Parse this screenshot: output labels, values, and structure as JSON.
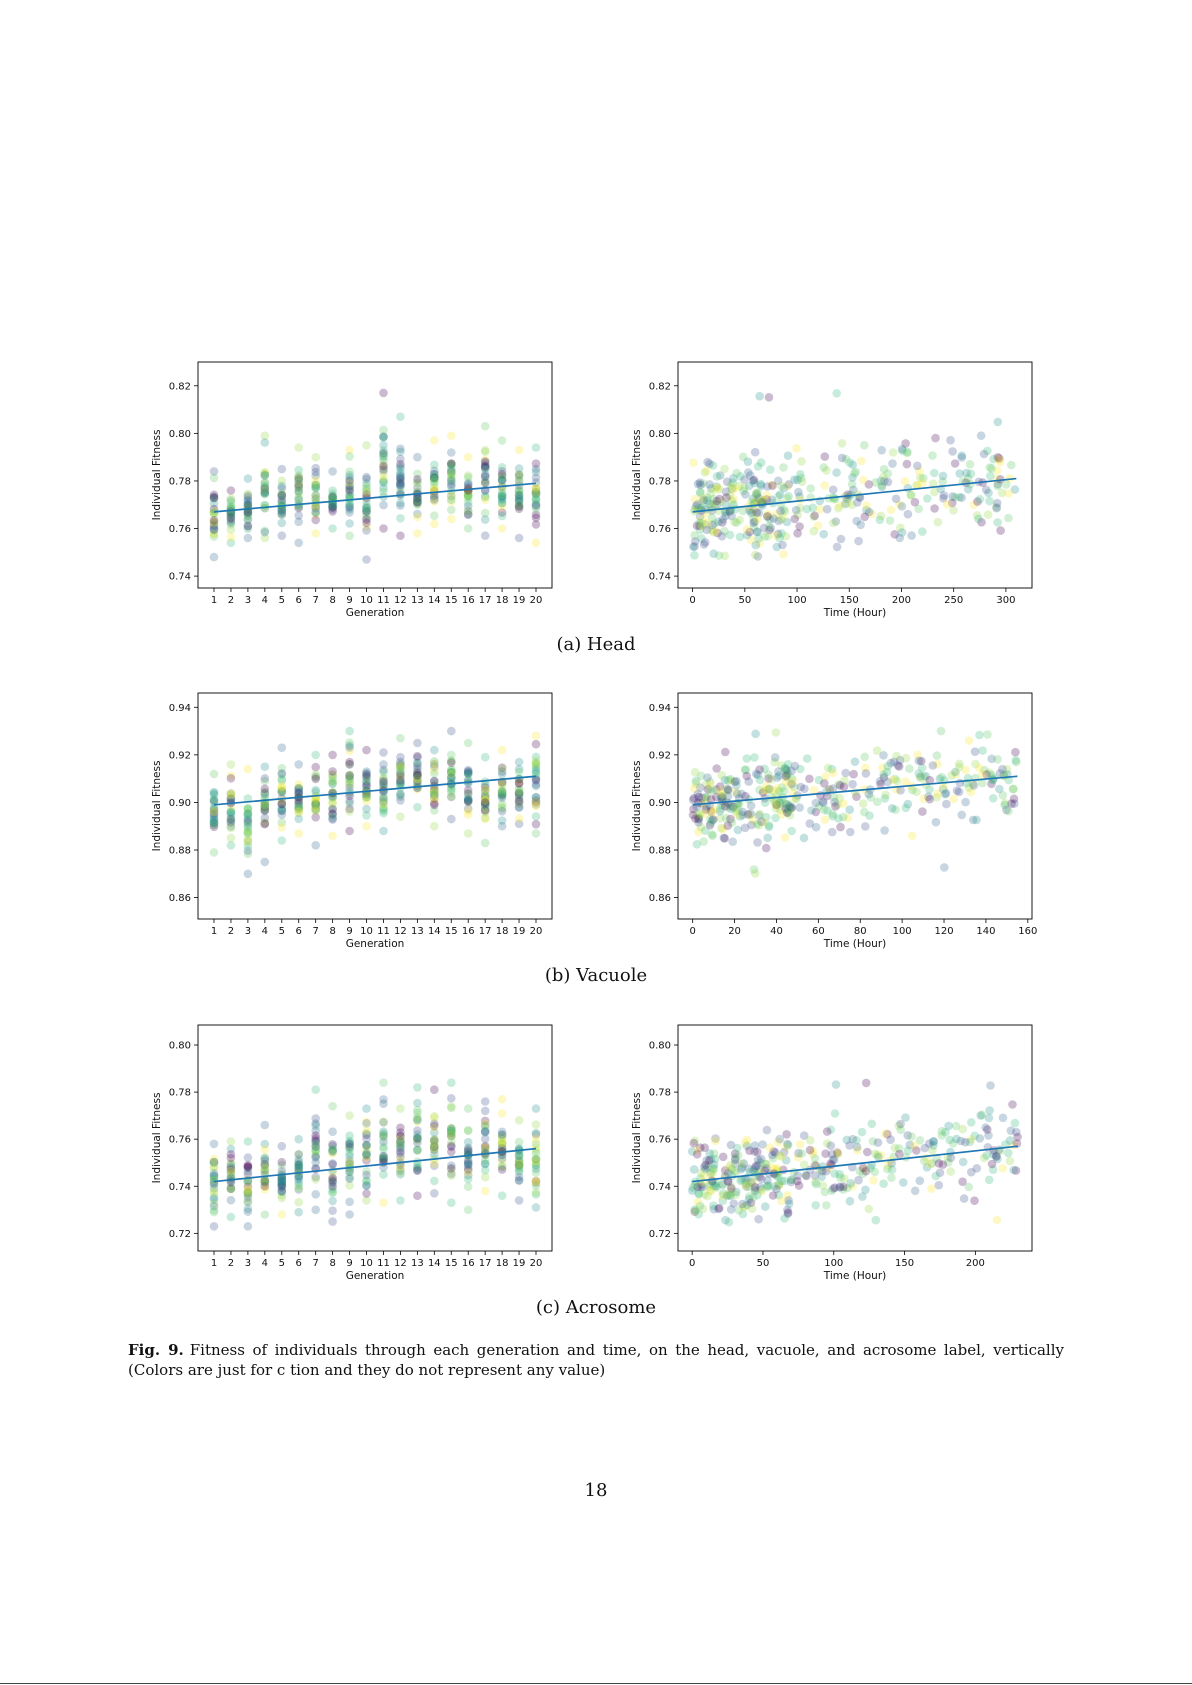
{
  "figure": {
    "caption_label": "Fig. 9.",
    "caption_text": "Fitness of individuals through each generation and time, on the head, vacuole, and acrosome label, vertically (Colors are just for c          tion and they do not represent any value)",
    "subcaptions": [
      "(a) Head",
      "(b) Vacuole",
      "(c) Acrosome"
    ],
    "page_number": "18"
  },
  "palette": [
    "#440154",
    "#3b528b",
    "#21918c",
    "#5ec962",
    "#fde725",
    "#31688e",
    "#35b779",
    "#90d743"
  ],
  "trend_color": "#1f77b4",
  "chart_data": [
    {
      "id": "head-generation",
      "type": "scatter",
      "title": "",
      "xlabel": "Generation",
      "ylabel": "Individual Fitness",
      "x_categories": [
        "1",
        "2",
        "3",
        "4",
        "5",
        "6",
        "7",
        "8",
        "9",
        "10",
        "11",
        "12",
        "13",
        "14",
        "15",
        "16",
        "17",
        "18",
        "19",
        "20"
      ],
      "ylim": [
        0.735,
        0.83
      ],
      "yticks": [
        0.74,
        0.76,
        0.78,
        0.8,
        0.82
      ],
      "ytick_labels": [
        "0.74",
        "0.76",
        "0.78",
        "0.80",
        "0.82"
      ],
      "per_generation_range": [
        [
          0.748,
          0.784
        ],
        [
          0.754,
          0.776
        ],
        [
          0.756,
          0.781
        ],
        [
          0.756,
          0.799
        ],
        [
          0.757,
          0.785
        ],
        [
          0.754,
          0.794
        ],
        [
          0.758,
          0.79
        ],
        [
          0.76,
          0.784
        ],
        [
          0.757,
          0.793
        ],
        [
          0.747,
          0.795
        ],
        [
          0.76,
          0.817
        ],
        [
          0.757,
          0.807
        ],
        [
          0.758,
          0.79
        ],
        [
          0.762,
          0.797
        ],
        [
          0.764,
          0.799
        ],
        [
          0.76,
          0.79
        ],
        [
          0.757,
          0.803
        ],
        [
          0.76,
          0.797
        ],
        [
          0.756,
          0.793
        ],
        [
          0.754,
          0.794
        ]
      ],
      "trend": {
        "x": [
          1,
          20
        ],
        "y": [
          0.767,
          0.779
        ]
      },
      "grid": false
    },
    {
      "id": "head-time",
      "type": "scatter",
      "title": "",
      "xlabel": "Time (Hour)",
      "ylabel": "Individual Fitness",
      "xlim": [
        -14,
        325
      ],
      "xticks": [
        0,
        50,
        100,
        150,
        200,
        250,
        300
      ],
      "ylim": [
        0.735,
        0.83
      ],
      "yticks": [
        0.74,
        0.76,
        0.78,
        0.8,
        0.82
      ],
      "ytick_labels": [
        "0.74",
        "0.76",
        "0.78",
        "0.80",
        "0.82"
      ],
      "time_range": [
        0,
        310
      ],
      "y_spread": [
        0.747,
        0.817
      ],
      "trend": {
        "x": [
          0,
          310
        ],
        "y": [
          0.767,
          0.781
        ]
      },
      "grid": false
    },
    {
      "id": "vacuole-generation",
      "type": "scatter",
      "title": "",
      "xlabel": "Generation",
      "ylabel": "Individual Fitness",
      "x_categories": [
        "1",
        "2",
        "3",
        "4",
        "5",
        "6",
        "7",
        "8",
        "9",
        "10",
        "11",
        "12",
        "13",
        "14",
        "15",
        "16",
        "17",
        "18",
        "19",
        "20"
      ],
      "ylim": [
        0.851,
        0.946
      ],
      "yticks": [
        0.86,
        0.88,
        0.9,
        0.92,
        0.94
      ],
      "ytick_labels": [
        "0.86",
        "0.88",
        "0.90",
        "0.92",
        "0.94"
      ],
      "per_generation_range": [
        [
          0.879,
          0.912
        ],
        [
          0.882,
          0.916
        ],
        [
          0.87,
          0.914
        ],
        [
          0.875,
          0.915
        ],
        [
          0.884,
          0.923
        ],
        [
          0.887,
          0.916
        ],
        [
          0.882,
          0.92
        ],
        [
          0.886,
          0.92
        ],
        [
          0.888,
          0.93
        ],
        [
          0.89,
          0.922
        ],
        [
          0.888,
          0.921
        ],
        [
          0.894,
          0.927
        ],
        [
          0.898,
          0.925
        ],
        [
          0.89,
          0.922
        ],
        [
          0.893,
          0.93
        ],
        [
          0.887,
          0.925
        ],
        [
          0.883,
          0.919
        ],
        [
          0.89,
          0.922
        ],
        [
          0.891,
          0.917
        ],
        [
          0.887,
          0.928
        ]
      ],
      "trend": {
        "x": [
          1,
          20
        ],
        "y": [
          0.899,
          0.911
        ]
      },
      "grid": false
    },
    {
      "id": "vacuole-time",
      "type": "scatter",
      "title": "",
      "xlabel": "Time (Hour)",
      "ylabel": "Individual Fitness",
      "xlim": [
        -7,
        162
      ],
      "xticks": [
        0,
        20,
        40,
        60,
        80,
        100,
        120,
        140,
        160
      ],
      "ylim": [
        0.851,
        0.946
      ],
      "yticks": [
        0.86,
        0.88,
        0.9,
        0.92,
        0.94
      ],
      "ytick_labels": [
        "0.86",
        "0.88",
        "0.90",
        "0.92",
        "0.94"
      ],
      "time_range": [
        0,
        155
      ],
      "y_spread": [
        0.87,
        0.93
      ],
      "trend": {
        "x": [
          0,
          155
        ],
        "y": [
          0.899,
          0.911
        ]
      },
      "grid": false
    },
    {
      "id": "acrosome-generation",
      "type": "scatter",
      "title": "",
      "xlabel": "Generation",
      "ylabel": "Individual Fitness",
      "x_categories": [
        "1",
        "2",
        "3",
        "4",
        "5",
        "6",
        "7",
        "8",
        "9",
        "10",
        "11",
        "12",
        "13",
        "14",
        "15",
        "16",
        "17",
        "18",
        "19",
        "20"
      ],
      "ylim": [
        0.7125,
        0.8085
      ],
      "yticks": [
        0.72,
        0.74,
        0.76,
        0.78,
        0.8
      ],
      "ytick_labels": [
        "0.72",
        "0.74",
        "0.76",
        "0.78",
        "0.80"
      ],
      "per_generation_range": [
        [
          0.723,
          0.758
        ],
        [
          0.727,
          0.759
        ],
        [
          0.723,
          0.759
        ],
        [
          0.728,
          0.766
        ],
        [
          0.728,
          0.757
        ],
        [
          0.729,
          0.76
        ],
        [
          0.73,
          0.781
        ],
        [
          0.725,
          0.774
        ],
        [
          0.728,
          0.77
        ],
        [
          0.734,
          0.773
        ],
        [
          0.733,
          0.784
        ],
        [
          0.734,
          0.773
        ],
        [
          0.736,
          0.782
        ],
        [
          0.737,
          0.781
        ],
        [
          0.733,
          0.784
        ],
        [
          0.73,
          0.773
        ],
        [
          0.738,
          0.776
        ],
        [
          0.736,
          0.777
        ],
        [
          0.734,
          0.768
        ],
        [
          0.731,
          0.773
        ]
      ],
      "trend": {
        "x": [
          1,
          20
        ],
        "y": [
          0.742,
          0.756
        ]
      },
      "grid": false
    },
    {
      "id": "acrosome-time",
      "type": "scatter",
      "title": "",
      "xlabel": "Time (Hour)",
      "ylabel": "Individual Fitness",
      "xlim": [
        -10,
        240
      ],
      "xticks": [
        0,
        50,
        100,
        150,
        200
      ],
      "ylim": [
        0.7125,
        0.8085
      ],
      "yticks": [
        0.72,
        0.74,
        0.76,
        0.78,
        0.8
      ],
      "ytick_labels": [
        "0.72",
        "0.74",
        "0.76",
        "0.78",
        "0.80"
      ],
      "time_range": [
        0,
        230
      ],
      "y_spread": [
        0.723,
        0.784
      ],
      "trend": {
        "x": [
          0,
          230
        ],
        "y": [
          0.742,
          0.757
        ]
      },
      "grid": false
    }
  ]
}
